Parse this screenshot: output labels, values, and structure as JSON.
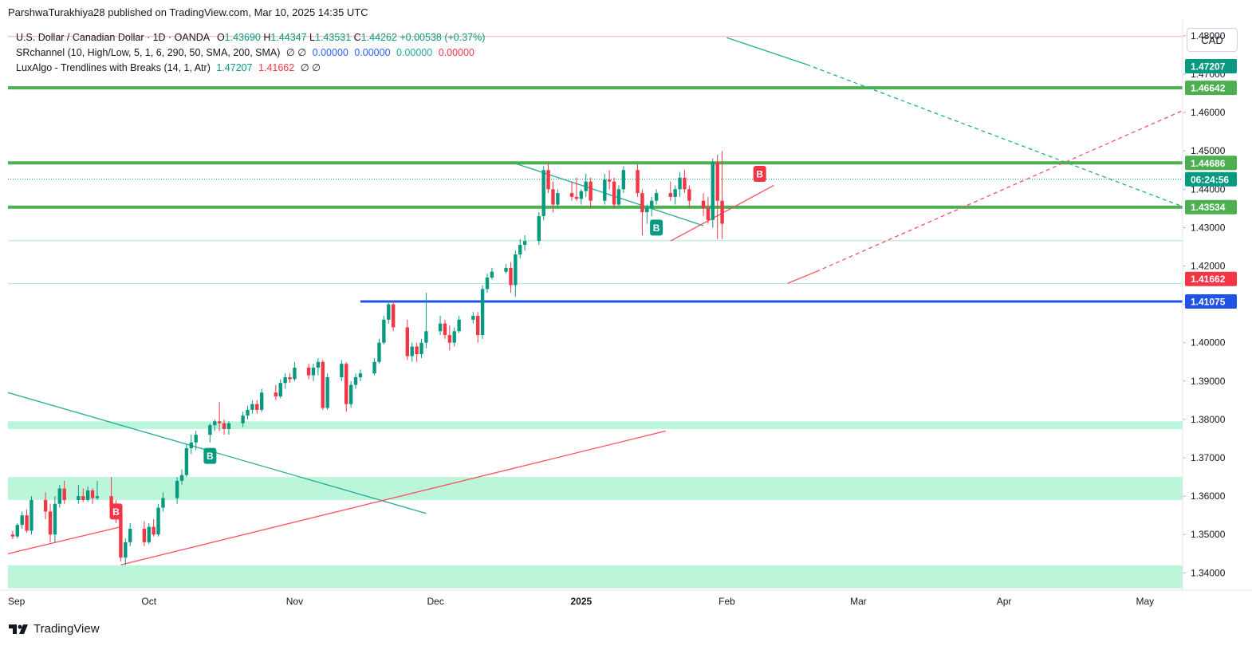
{
  "header": {
    "published_line": "ParshwaTurakhiya28 published on TradingView.com, Mar 10, 2025 14:35 UTC"
  },
  "legend": {
    "symbol": "U.S. Dollar / Canadian Dollar · 1D · OANDA",
    "o_label": "O",
    "o_value": "1.43690",
    "h_label": "H",
    "h_value": "1.44347",
    "l_label": "L",
    "l_value": "1.43531",
    "c_label": "C",
    "c_value": "1.44262",
    "change": "+0.00538 (+0.37%)",
    "srchannel_label": "SRchannel (10, High/Low, 5, 1, 6, 290, 50, SMA, 200, SMA)",
    "srchannel_empty": "∅  ∅",
    "srchannel_v1": "0.00000",
    "srchannel_v2": "0.00000",
    "srchannel_v3": "0.00000",
    "srchannel_v4": "0.00000",
    "luxalgo_label": "LuxAlgo - Trendlines with Breaks (14, 1, Atr)",
    "luxalgo_v1": "1.47207",
    "luxalgo_v2": "1.41662",
    "luxalgo_empty": "∅  ∅"
  },
  "currency_button": "CAD",
  "footer": {
    "brand": "TradingView",
    "logo_icon": "tradingview-logo-icon"
  },
  "colors": {
    "up": "#089981",
    "down": "#f23645",
    "sr_line": "#4caf50",
    "zone": "#b8f5d8",
    "blue_line": "#1e53e5",
    "teal": "#22ab94",
    "red_trend": "#f7525f"
  },
  "chart_data": {
    "type": "candlestick",
    "ylim": [
      1.3355,
      1.4835
    ],
    "y_ticks": [
      "1.48000",
      "1.47000",
      "1.46000",
      "1.45000",
      "1.44000",
      "1.43000",
      "1.42000",
      "1.41000",
      "1.40000",
      "1.39000",
      "1.38000",
      "1.37000",
      "1.36000",
      "1.35000",
      "1.34000"
    ],
    "x_ticks": [
      {
        "label": "Sep",
        "date": "2024-09-01"
      },
      {
        "label": "Oct",
        "date": "2024-10-01"
      },
      {
        "label": "Nov",
        "date": "2024-11-01"
      },
      {
        "label": "Dec",
        "date": "2024-12-01"
      },
      {
        "label": "2025",
        "date": "2025-01-01"
      },
      {
        "label": "Feb",
        "date": "2025-02-01"
      },
      {
        "label": "Mar",
        "date": "2025-03-01"
      },
      {
        "label": "Apr",
        "date": "2025-04-01"
      },
      {
        "label": "May",
        "date": "2025-05-01"
      }
    ],
    "x_range": [
      "2024-09-01",
      "2025-05-09"
    ],
    "price_labels": [
      {
        "text": "1.47207",
        "price": 1.47207,
        "color": "#089981"
      },
      {
        "text": "1.46642",
        "price": 1.46642,
        "color": "#4caf50"
      },
      {
        "text": "1.44686",
        "price": 1.44686,
        "color": "#4caf50"
      },
      {
        "text": "06:24:56",
        "price": 1.4426,
        "color": "#089981"
      },
      {
        "text": "1.43534",
        "price": 1.43534,
        "color": "#4caf50"
      },
      {
        "text": "1.41662",
        "price": 1.41662,
        "color": "#f23645"
      },
      {
        "text": "1.41075",
        "price": 1.41075,
        "color": "#1e53e5"
      }
    ],
    "sr_levels": [
      1.46642,
      1.44686,
      1.43534
    ],
    "zones": [
      [
        1.3775,
        1.3795
      ],
      [
        1.359,
        1.365
      ],
      [
        1.336,
        1.342
      ]
    ],
    "thin_levels": [
      1.4798,
      1.4266,
      1.4154
    ],
    "blue_level": {
      "price": 1.41075,
      "from": "2024-11-15"
    },
    "last_close": 1.44262,
    "trendlines": [
      {
        "from": [
          "2024-09-01",
          1.387
        ],
        "to": [
          "2024-11-29",
          1.3555
        ],
        "color": "teal",
        "style": "solid"
      },
      {
        "from": [
          "2024-09-25",
          1.3421
        ],
        "to": [
          "2025-01-19",
          1.377
        ],
        "color": "red",
        "style": "solid"
      },
      {
        "from": [
          "2024-09-01",
          1.345
        ],
        "to": [
          "2024-09-25",
          1.352
        ],
        "color": "red",
        "style": "solid"
      },
      {
        "from": [
          "2024-12-18",
          1.4467
        ],
        "to": [
          "2025-01-27",
          1.4305
        ],
        "color": "teal",
        "style": "solid"
      },
      {
        "from": [
          "2025-01-20",
          1.4265
        ],
        "to": [
          "2025-02-11",
          1.441
        ],
        "color": "red",
        "style": "solid"
      },
      {
        "from": [
          "2025-02-01",
          1.4795
        ],
        "to": [
          "2025-02-18",
          1.4725
        ],
        "color": "teal",
        "style": "solid"
      },
      {
        "from": [
          "2025-02-18",
          1.4725
        ],
        "to": [
          "2025-05-09",
          1.4355
        ],
        "color": "teal",
        "style": "dashed"
      },
      {
        "from": [
          "2025-02-14",
          1.4155
        ],
        "to": [
          "2025-02-20",
          1.4185
        ],
        "color": "red",
        "style": "solid"
      },
      {
        "from": [
          "2025-02-20",
          1.4185
        ],
        "to": [
          "2025-05-09",
          1.4605
        ],
        "color": "red",
        "style": "dashed"
      }
    ],
    "signals": [
      {
        "text": "B",
        "date": "2024-09-24",
        "price": 1.356,
        "color": "#f23645"
      },
      {
        "text": "B",
        "date": "2024-10-14",
        "price": 1.3705,
        "color": "#089981"
      },
      {
        "text": "B",
        "date": "2025-01-17",
        "price": 1.43,
        "color": "#089981"
      },
      {
        "text": "B",
        "date": "2025-02-08",
        "price": 1.444,
        "color": "#f23645"
      }
    ],
    "candles": [
      [
        "2024-09-02",
        1.35,
        1.351,
        1.3488,
        1.3495
      ],
      [
        "2024-09-03",
        1.3495,
        1.353,
        1.349,
        1.3525
      ],
      [
        "2024-09-04",
        1.3525,
        1.356,
        1.3515,
        1.355
      ],
      [
        "2024-09-05",
        1.355,
        1.3565,
        1.3505,
        1.351
      ],
      [
        "2024-09-06",
        1.351,
        1.36,
        1.35,
        1.359
      ],
      [
        "2024-09-09",
        1.359,
        1.361,
        1.354,
        1.356
      ],
      [
        "2024-09-10",
        1.356,
        1.358,
        1.348,
        1.35
      ],
      [
        "2024-09-11",
        1.35,
        1.36,
        1.348,
        1.358
      ],
      [
        "2024-09-12",
        1.358,
        1.363,
        1.357,
        1.362
      ],
      [
        "2024-09-13",
        1.362,
        1.364,
        1.358,
        1.359
      ],
      [
        "2024-09-16",
        1.359,
        1.363,
        1.358,
        1.36
      ],
      [
        "2024-09-17",
        1.36,
        1.362,
        1.3585,
        1.359
      ],
      [
        "2024-09-18",
        1.359,
        1.3625,
        1.3585,
        1.3615
      ],
      [
        "2024-09-19",
        1.3615,
        1.362,
        1.358,
        1.3595
      ],
      [
        "2024-09-20",
        1.3595,
        1.364,
        1.359,
        1.36
      ],
      [
        "2024-09-23",
        1.36,
        1.365,
        1.355,
        1.357
      ],
      [
        "2024-09-24",
        1.357,
        1.359,
        1.353,
        1.3555
      ],
      [
        "2024-09-25",
        1.3555,
        1.358,
        1.343,
        1.344
      ],
      [
        "2024-09-26",
        1.344,
        1.349,
        1.342,
        1.348
      ],
      [
        "2024-09-27",
        1.348,
        1.353,
        1.347,
        1.3515
      ],
      [
        "2024-09-30",
        1.3515,
        1.3535,
        1.347,
        1.348
      ],
      [
        "2024-10-01",
        1.348,
        1.353,
        1.3475,
        1.352
      ],
      [
        "2024-10-02",
        1.352,
        1.354,
        1.3495,
        1.35
      ],
      [
        "2024-10-03",
        1.35,
        1.358,
        1.3495,
        1.357
      ],
      [
        "2024-10-04",
        1.357,
        1.361,
        1.356,
        1.3595
      ],
      [
        "2024-10-07",
        1.3595,
        1.365,
        1.358,
        1.364
      ],
      [
        "2024-10-08",
        1.364,
        1.367,
        1.363,
        1.3655
      ],
      [
        "2024-10-09",
        1.3655,
        1.3735,
        1.365,
        1.3725
      ],
      [
        "2024-10-10",
        1.3725,
        1.376,
        1.371,
        1.374
      ],
      [
        "2024-10-11",
        1.374,
        1.377,
        1.372,
        1.376
      ],
      [
        "2024-10-14",
        1.376,
        1.379,
        1.374,
        1.3785
      ],
      [
        "2024-10-15",
        1.3785,
        1.38,
        1.377,
        1.3795
      ],
      [
        "2024-10-16",
        1.3795,
        1.3845,
        1.377,
        1.379
      ],
      [
        "2024-10-17",
        1.379,
        1.38,
        1.376,
        1.3775
      ],
      [
        "2024-10-18",
        1.3775,
        1.3795,
        1.376,
        1.379
      ],
      [
        "2024-10-21",
        1.379,
        1.382,
        1.378,
        1.381
      ],
      [
        "2024-10-22",
        1.381,
        1.3835,
        1.38,
        1.3825
      ],
      [
        "2024-10-23",
        1.3825,
        1.385,
        1.3815,
        1.384
      ],
      [
        "2024-10-24",
        1.384,
        1.385,
        1.3815,
        1.3825
      ],
      [
        "2024-10-25",
        1.3825,
        1.388,
        1.382,
        1.387
      ],
      [
        "2024-10-28",
        1.387,
        1.389,
        1.385,
        1.386
      ],
      [
        "2024-10-29",
        1.386,
        1.3905,
        1.3855,
        1.3895
      ],
      [
        "2024-10-30",
        1.3895,
        1.392,
        1.388,
        1.391
      ],
      [
        "2024-10-31",
        1.391,
        1.392,
        1.3895,
        1.3905
      ],
      [
        "2024-11-01",
        1.3905,
        1.395,
        1.39,
        1.3935
      ],
      [
        "2024-11-04",
        1.3935,
        1.3945,
        1.3905,
        1.3915
      ],
      [
        "2024-11-05",
        1.3915,
        1.3945,
        1.39,
        1.3935
      ],
      [
        "2024-11-06",
        1.3935,
        1.396,
        1.3915,
        1.395
      ],
      [
        "2024-11-07",
        1.395,
        1.3955,
        1.3825,
        1.383
      ],
      [
        "2024-11-08",
        1.383,
        1.392,
        1.3825,
        1.391
      ],
      [
        "2024-11-11",
        1.391,
        1.3955,
        1.39,
        1.3945
      ],
      [
        "2024-11-12",
        1.3945,
        1.395,
        1.382,
        1.384
      ],
      [
        "2024-11-13",
        1.384,
        1.39,
        1.383,
        1.389
      ],
      [
        "2024-11-14",
        1.389,
        1.392,
        1.388,
        1.391
      ],
      [
        "2024-11-15",
        1.391,
        1.393,
        1.39,
        1.392
      ],
      [
        "2024-11-18",
        1.392,
        1.396,
        1.3915,
        1.395
      ],
      [
        "2024-11-19",
        1.395,
        1.401,
        1.3945,
        1.4
      ],
      [
        "2024-11-20",
        1.4,
        1.407,
        1.3995,
        1.406
      ],
      [
        "2024-11-21",
        1.406,
        1.411,
        1.405,
        1.41
      ],
      [
        "2024-11-22",
        1.41,
        1.411,
        1.403,
        1.404
      ],
      [
        "2024-11-25",
        1.404,
        1.406,
        1.3955,
        1.3965
      ],
      [
        "2024-11-26",
        1.3965,
        1.4,
        1.395,
        1.399
      ],
      [
        "2024-11-27",
        1.399,
        1.4,
        1.395,
        1.397
      ],
      [
        "2024-11-28",
        1.397,
        1.401,
        1.396,
        1.4
      ],
      [
        "2024-11-29",
        1.4,
        1.413,
        1.3985,
        1.403
      ],
      [
        "2024-12-02",
        1.403,
        1.407,
        1.402,
        1.405
      ],
      [
        "2024-12-03",
        1.405,
        1.406,
        1.401,
        1.402
      ],
      [
        "2024-12-04",
        1.402,
        1.4045,
        1.398,
        1.4
      ],
      [
        "2024-12-05",
        1.4,
        1.404,
        1.399,
        1.403
      ],
      [
        "2024-12-06",
        1.403,
        1.407,
        1.4025,
        1.406
      ],
      [
        "2024-12-09",
        1.406,
        1.408,
        1.405,
        1.407
      ],
      [
        "2024-12-10",
        1.407,
        1.408,
        1.4,
        1.402
      ],
      [
        "2024-12-11",
        1.402,
        1.415,
        1.401,
        1.414
      ],
      [
        "2024-12-12",
        1.414,
        1.418,
        1.413,
        1.417
      ],
      [
        "2024-12-13",
        1.417,
        1.4195,
        1.4165,
        1.4185
      ],
      [
        "2024-12-16",
        1.4185,
        1.4205,
        1.418,
        1.4195
      ],
      [
        "2024-12-17",
        1.4195,
        1.421,
        1.413,
        1.415
      ],
      [
        "2024-12-18",
        1.415,
        1.424,
        1.412,
        1.423
      ],
      [
        "2024-12-19",
        1.423,
        1.427,
        1.422,
        1.4255
      ],
      [
        "2024-12-20",
        1.4255,
        1.428,
        1.424,
        1.4265
      ],
      [
        "2024-12-23",
        1.4265,
        1.434,
        1.4255,
        1.433
      ],
      [
        "2024-12-24",
        1.433,
        1.446,
        1.432,
        1.445
      ],
      [
        "2024-12-25",
        1.445,
        1.447,
        1.439,
        1.44
      ],
      [
        "2024-12-26",
        1.44,
        1.442,
        1.434,
        1.436
      ],
      [
        "2024-12-27",
        1.436,
        1.44,
        1.435,
        1.439
      ],
      [
        "2024-12-30",
        1.439,
        1.442,
        1.437,
        1.438
      ],
      [
        "2024-12-31",
        1.438,
        1.443,
        1.437,
        1.4375
      ],
      [
        "2025-01-01",
        1.4375,
        1.44,
        1.436,
        1.4395
      ],
      [
        "2025-01-02",
        1.4395,
        1.444,
        1.438,
        1.442
      ],
      [
        "2025-01-03",
        1.442,
        1.443,
        1.435,
        1.437
      ],
      [
        "2025-01-06",
        1.437,
        1.444,
        1.436,
        1.4425
      ],
      [
        "2025-01-07",
        1.4425,
        1.445,
        1.44,
        1.442
      ],
      [
        "2025-01-08",
        1.442,
        1.443,
        1.435,
        1.436
      ],
      [
        "2025-01-09",
        1.436,
        1.441,
        1.4355,
        1.44
      ],
      [
        "2025-01-10",
        1.44,
        1.446,
        1.439,
        1.445
      ],
      [
        "2025-01-13",
        1.445,
        1.4465,
        1.438,
        1.439
      ],
      [
        "2025-01-14",
        1.439,
        1.44,
        1.428,
        1.434
      ],
      [
        "2025-01-15",
        1.434,
        1.436,
        1.431,
        1.435
      ],
      [
        "2025-01-16",
        1.435,
        1.438,
        1.433,
        1.437
      ],
      [
        "2025-01-17",
        1.437,
        1.44,
        1.436,
        1.439
      ],
      [
        "2025-01-20",
        1.439,
        1.442,
        1.437,
        1.438
      ],
      [
        "2025-01-21",
        1.438,
        1.441,
        1.436,
        1.44
      ],
      [
        "2025-01-22",
        1.44,
        1.4445,
        1.438,
        1.443
      ],
      [
        "2025-01-23",
        1.443,
        1.445,
        1.439,
        1.44
      ],
      [
        "2025-01-24",
        1.44,
        1.441,
        1.435,
        1.437
      ],
      [
        "2025-01-27",
        1.437,
        1.439,
        1.433,
        1.435
      ],
      [
        "2025-01-28",
        1.435,
        1.438,
        1.431,
        1.432
      ],
      [
        "2025-01-29",
        1.432,
        1.448,
        1.43,
        1.447
      ],
      [
        "2025-01-30",
        1.447,
        1.449,
        1.427,
        1.437
      ],
      [
        "2025-01-31",
        1.437,
        1.45,
        1.427,
        1.431
      ]
    ]
  }
}
